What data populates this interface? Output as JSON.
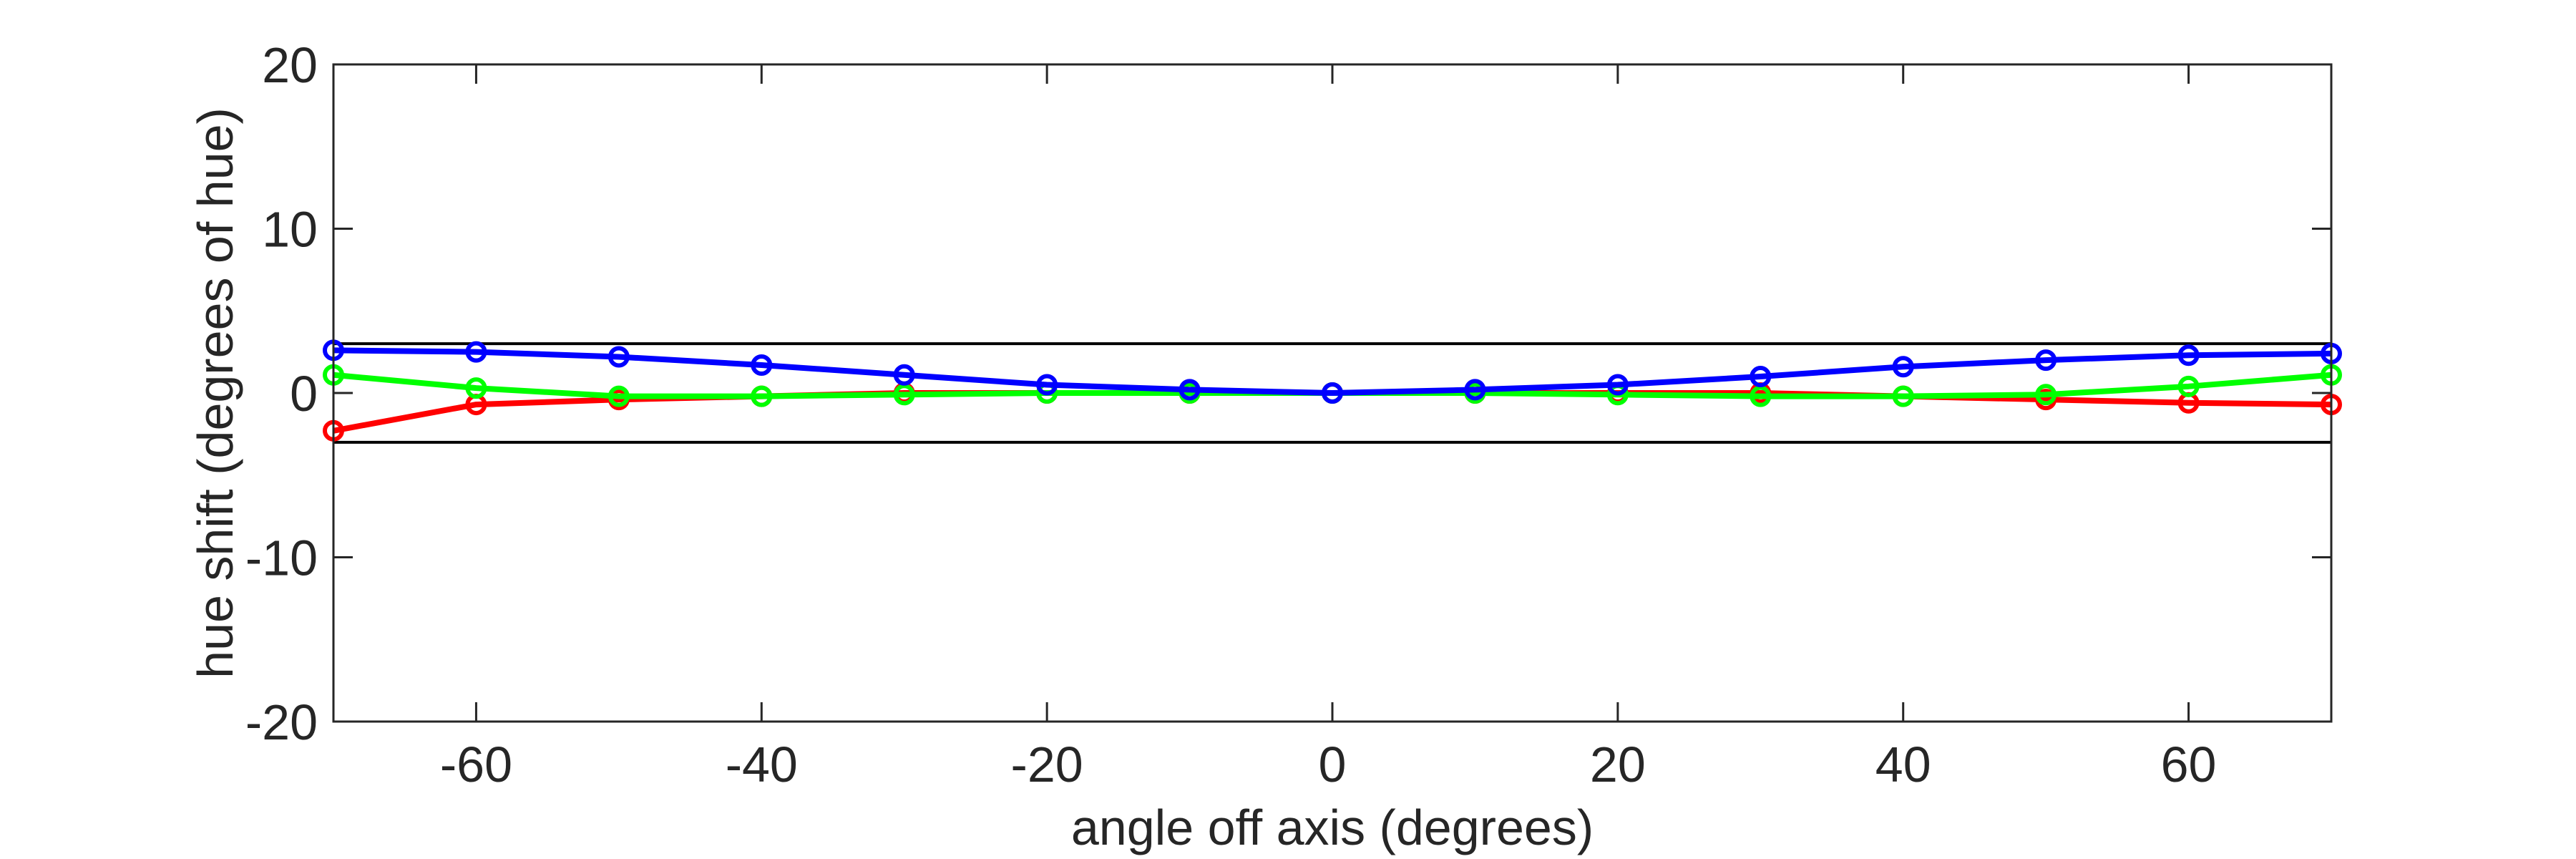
{
  "chart_data": {
    "type": "line",
    "xlabel": "angle off axis (degrees)",
    "ylabel": "hue shift (degrees of hue)",
    "x": [
      -70,
      -60,
      -50,
      -40,
      -30,
      -20,
      -10,
      0,
      10,
      20,
      30,
      40,
      50,
      60,
      70
    ],
    "series": [
      {
        "color": "#ff0000",
        "values": [
          -2.3,
          -0.7,
          -0.4,
          -0.2,
          0,
          0,
          0,
          0,
          0,
          0,
          0,
          -0.2,
          -0.4,
          -0.6,
          -0.7
        ]
      },
      {
        "color": "#00ff00",
        "values": [
          1.1,
          0.3,
          -0.2,
          -0.2,
          -0.1,
          0,
          0,
          0,
          0,
          -0.1,
          -0.2,
          -0.2,
          -0.1,
          0.4,
          1.1
        ]
      },
      {
        "color": "#0000ff",
        "values": [
          2.6,
          2.5,
          2.2,
          1.7,
          1.1,
          0.5,
          0.2,
          0,
          0.2,
          0.5,
          1.0,
          1.6,
          2.0,
          2.3,
          2.4
        ]
      }
    ],
    "reference_lines": [
      3,
      -3
    ],
    "xlim": [
      -70,
      70
    ],
    "xticks": [
      -60,
      -40,
      -20,
      0,
      20,
      40,
      60
    ],
    "ylim": [
      -20,
      20
    ],
    "yticks": [
      -20,
      -10,
      0,
      10,
      20
    ]
  }
}
